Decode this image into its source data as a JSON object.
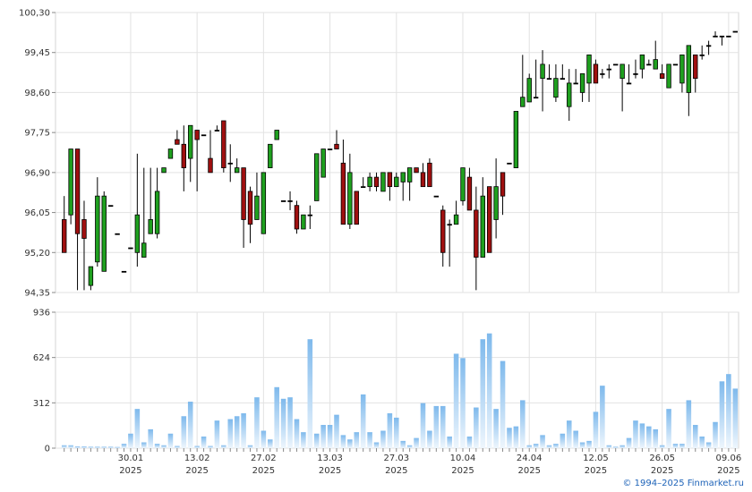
{
  "copyright": "© 1994–2025 Finmarket.ru",
  "chart_data": [
    {
      "type": "candlestick",
      "title": "",
      "ylim": [
        94.35,
        100.3
      ],
      "yticks": [
        "100,30",
        "99,45",
        "98,60",
        "97,75",
        "96,90",
        "96,05",
        "95,20",
        "94,35"
      ],
      "ytick_values": [
        100.3,
        99.45,
        98.6,
        97.75,
        96.9,
        96.05,
        95.2,
        94.35
      ],
      "xticks": [
        {
          "day": "30.01",
          "year": "2025",
          "index": 10
        },
        {
          "day": "13.02",
          "year": "2025",
          "index": 20
        },
        {
          "day": "27.02",
          "year": "2025",
          "index": 30
        },
        {
          "day": "13.03",
          "year": "2025",
          "index": 40
        },
        {
          "day": "27.03",
          "year": "2025",
          "index": 50
        },
        {
          "day": "10.04",
          "year": "2025",
          "index": 60
        },
        {
          "day": "24.04",
          "year": "2025",
          "index": 70
        },
        {
          "day": "12.05",
          "year": "2025",
          "index": 80
        },
        {
          "day": "26.05",
          "year": "2025",
          "index": 90
        },
        {
          "day": "09.06",
          "year": "2025",
          "index": 100
        }
      ],
      "colors": {
        "up": "#1fa01f",
        "down": "#a01010",
        "doji": "#000000"
      },
      "candles": [
        [
          95.9,
          95.2,
          96.4,
          95.2
        ],
        [
          96.0,
          97.4,
          97.4,
          95.8
        ],
        [
          97.4,
          95.6,
          97.4,
          94.4
        ],
        [
          95.9,
          95.5,
          96.3,
          94.4
        ],
        [
          94.5,
          94.9,
          94.9,
          94.4
        ],
        [
          95.0,
          96.4,
          96.8,
          94.9
        ],
        [
          94.8,
          96.4,
          96.5,
          94.8
        ],
        [
          96.2,
          96.2,
          96.2,
          96.2
        ],
        [
          95.6,
          95.6,
          95.6,
          95.6
        ],
        [
          94.8,
          94.8,
          94.8,
          94.8
        ],
        [
          95.3,
          95.3,
          95.3,
          95.3
        ],
        [
          95.2,
          96.0,
          97.3,
          94.9
        ],
        [
          95.1,
          95.4,
          97.0,
          95.1
        ],
        [
          95.6,
          95.9,
          97.0,
          95.6
        ],
        [
          95.6,
          96.5,
          97.0,
          95.5
        ],
        [
          96.9,
          97.0,
          97.0,
          96.9
        ],
        [
          97.2,
          97.4,
          97.4,
          97.2
        ],
        [
          97.6,
          97.5,
          97.8,
          97.5
        ],
        [
          97.5,
          97.0,
          97.9,
          96.5
        ],
        [
          97.2,
          97.9,
          97.9,
          96.7
        ],
        [
          97.8,
          97.6,
          97.8,
          96.5
        ],
        [
          97.7,
          97.7,
          97.7,
          97.7
        ],
        [
          97.2,
          96.9,
          97.8,
          96.9
        ],
        [
          97.8,
          97.8,
          97.9,
          97.8
        ],
        [
          98.0,
          97.0,
          98.0,
          96.9
        ],
        [
          97.1,
          97.1,
          97.5,
          96.7
        ],
        [
          96.9,
          97.0,
          97.2,
          96.9
        ],
        [
          97.0,
          95.9,
          97.0,
          95.3
        ],
        [
          96.5,
          95.8,
          96.6,
          95.4
        ],
        [
          95.9,
          96.4,
          96.9,
          95.9
        ],
        [
          95.6,
          96.9,
          96.9,
          95.6
        ],
        [
          97.0,
          97.5,
          97.5,
          97.0
        ],
        [
          97.6,
          97.8,
          97.8,
          97.6
        ],
        [
          96.3,
          96.3,
          96.3,
          96.3
        ],
        [
          96.3,
          96.3,
          96.5,
          96.1
        ],
        [
          96.2,
          95.7,
          96.3,
          95.6
        ],
        [
          95.7,
          96.0,
          96.0,
          95.7
        ],
        [
          96.0,
          96.0,
          96.2,
          95.7
        ],
        [
          96.3,
          97.3,
          97.3,
          96.3
        ],
        [
          96.8,
          97.4,
          97.4,
          96.8
        ],
        [
          97.4,
          97.4,
          97.4,
          97.4
        ],
        [
          97.5,
          97.4,
          97.8,
          97.4
        ],
        [
          97.1,
          95.8,
          97.6,
          95.8
        ],
        [
          95.8,
          96.9,
          97.3,
          95.7
        ],
        [
          96.5,
          95.8,
          96.5,
          95.8
        ],
        [
          96.6,
          96.6,
          96.8,
          96.6
        ],
        [
          96.6,
          96.8,
          96.9,
          96.5
        ],
        [
          96.8,
          96.6,
          96.9,
          96.5
        ],
        [
          96.5,
          96.9,
          96.9,
          96.5
        ],
        [
          96.9,
          96.6,
          96.9,
          96.3
        ],
        [
          96.6,
          96.8,
          96.9,
          96.6
        ],
        [
          96.7,
          96.9,
          96.9,
          96.3
        ],
        [
          96.7,
          97.0,
          97.0,
          96.3
        ],
        [
          97.0,
          96.9,
          97.0,
          96.9
        ],
        [
          96.9,
          96.6,
          97.1,
          96.6
        ],
        [
          97.1,
          96.6,
          97.2,
          96.6
        ],
        [
          96.4,
          96.4,
          96.4,
          96.4
        ],
        [
          96.1,
          95.2,
          96.2,
          94.9
        ],
        [
          95.8,
          95.8,
          95.9,
          94.9
        ],
        [
          95.8,
          96.0,
          96.3,
          95.8
        ],
        [
          96.3,
          97.0,
          97.0,
          96.2
        ],
        [
          96.8,
          96.1,
          97.0,
          96.1
        ],
        [
          96.1,
          95.1,
          96.6,
          94.4
        ],
        [
          95.1,
          96.4,
          96.8,
          95.1
        ],
        [
          96.6,
          95.2,
          96.6,
          95.2
        ],
        [
          95.9,
          96.6,
          97.2,
          95.5
        ],
        [
          96.9,
          96.4,
          96.9,
          96.0
        ],
        [
          97.1,
          97.1,
          97.1,
          97.1
        ],
        [
          97.0,
          98.2,
          98.2,
          97.0
        ],
        [
          98.3,
          98.5,
          99.4,
          98.3
        ],
        [
          98.4,
          98.9,
          99.0,
          98.4
        ],
        [
          98.5,
          98.5,
          99.3,
          98.5
        ],
        [
          98.9,
          99.2,
          99.5,
          98.2
        ],
        [
          98.9,
          98.9,
          99.2,
          98.9
        ],
        [
          98.5,
          98.9,
          99.2,
          98.4
        ],
        [
          98.9,
          98.9,
          99.2,
          98.9
        ],
        [
          98.3,
          98.8,
          99.1,
          98.0
        ],
        [
          98.8,
          98.8,
          99.1,
          98.8
        ],
        [
          98.6,
          99.0,
          99.0,
          98.4
        ],
        [
          98.8,
          99.4,
          99.4,
          98.4
        ],
        [
          99.2,
          98.8,
          99.3,
          98.8
        ],
        [
          99.0,
          99.0,
          99.1,
          98.9
        ],
        [
          99.1,
          99.1,
          99.2,
          98.9
        ],
        [
          99.2,
          99.2,
          99.2,
          99.2
        ],
        [
          98.9,
          99.2,
          99.2,
          98.2
        ],
        [
          98.8,
          98.8,
          99.2,
          98.8
        ],
        [
          99.0,
          99.0,
          99.3,
          98.9
        ],
        [
          99.1,
          99.4,
          99.4,
          98.9
        ],
        [
          99.2,
          99.2,
          99.3,
          99.2
        ],
        [
          99.1,
          99.3,
          99.7,
          99.1
        ],
        [
          99.0,
          98.9,
          99.2,
          98.9
        ],
        [
          98.7,
          99.2,
          99.2,
          98.7
        ],
        [
          99.2,
          99.2,
          99.2,
          99.2
        ],
        [
          98.8,
          99.4,
          99.4,
          98.6
        ],
        [
          98.6,
          99.6,
          99.6,
          98.1
        ],
        [
          99.4,
          98.9,
          99.4,
          98.6
        ],
        [
          99.4,
          99.4,
          99.6,
          99.3
        ],
        [
          99.6,
          99.6,
          99.7,
          99.4
        ],
        [
          99.8,
          99.8,
          99.9,
          99.8
        ],
        [
          99.8,
          99.8,
          99.8,
          99.6
        ],
        [
          99.8,
          99.8,
          99.8,
          99.8
        ],
        [
          99.9,
          99.9,
          99.9,
          99.9
        ]
      ]
    },
    {
      "type": "bar",
      "title": "",
      "ylim": [
        0,
        936
      ],
      "yticks": [
        "936",
        "624",
        "312",
        "0"
      ],
      "ytick_values": [
        936,
        624,
        312,
        0
      ],
      "color_top": "#7eb9ec",
      "color_bottom": "#eef6fd",
      "values": [
        20,
        20,
        12,
        12,
        10,
        10,
        10,
        10,
        8,
        30,
        100,
        270,
        40,
        130,
        30,
        20,
        100,
        15,
        220,
        320,
        15,
        80,
        15,
        190,
        20,
        200,
        220,
        240,
        20,
        350,
        120,
        60,
        420,
        340,
        350,
        200,
        110,
        750,
        100,
        160,
        160,
        230,
        90,
        60,
        110,
        370,
        110,
        40,
        120,
        240,
        210,
        50,
        20,
        70,
        310,
        120,
        290,
        290,
        80,
        650,
        620,
        80,
        280,
        750,
        790,
        270,
        600,
        140,
        150,
        330,
        20,
        30,
        90,
        20,
        30,
        100,
        190,
        120,
        40,
        50,
        250,
        430,
        20,
        10,
        20,
        70,
        190,
        170,
        150,
        130,
        20,
        270,
        30,
        30,
        330,
        160,
        80,
        40,
        180,
        460,
        510,
        410
      ]
    }
  ]
}
